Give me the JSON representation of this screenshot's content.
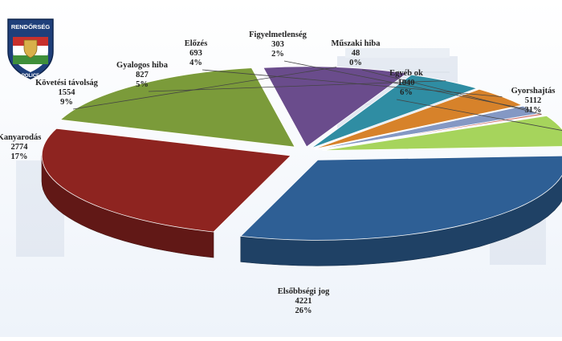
{
  "logo": {
    "top_text": "RENDŐRSÉG",
    "bottom_text": "POLICE"
  },
  "chart_data": {
    "type": "pie",
    "title": "",
    "unit": "",
    "slices": [
      {
        "label": "Gyorshajtás",
        "value": 5112,
        "percent": "31%",
        "color": "#2e5f95"
      },
      {
        "label": "Elsőbbségi jog",
        "value": 4221,
        "percent": "26%",
        "color": "#8e2420"
      },
      {
        "label": "Kanyarodás",
        "value": 2774,
        "percent": "17%",
        "color": "#7b9b3a"
      },
      {
        "label": "Követési távolság",
        "value": 1554,
        "percent": "9%",
        "color": "#6a4c8c"
      },
      {
        "label": "Gyalogos hiba",
        "value": 827,
        "percent": "5%",
        "color": "#2f8da3"
      },
      {
        "label": "Előzés",
        "value": 693,
        "percent": "4%",
        "color": "#d7822a"
      },
      {
        "label": "Figyelmetlenség",
        "value": 303,
        "percent": "2%",
        "color": "#8498c4"
      },
      {
        "label": "Műszaki hiba",
        "value": 48,
        "percent": "0%",
        "color": "#c9564f"
      },
      {
        "label": "Egyéb ok",
        "value": 1040,
        "percent": "6%",
        "color": "#a6d45c"
      }
    ],
    "style": "3d-exploded"
  }
}
